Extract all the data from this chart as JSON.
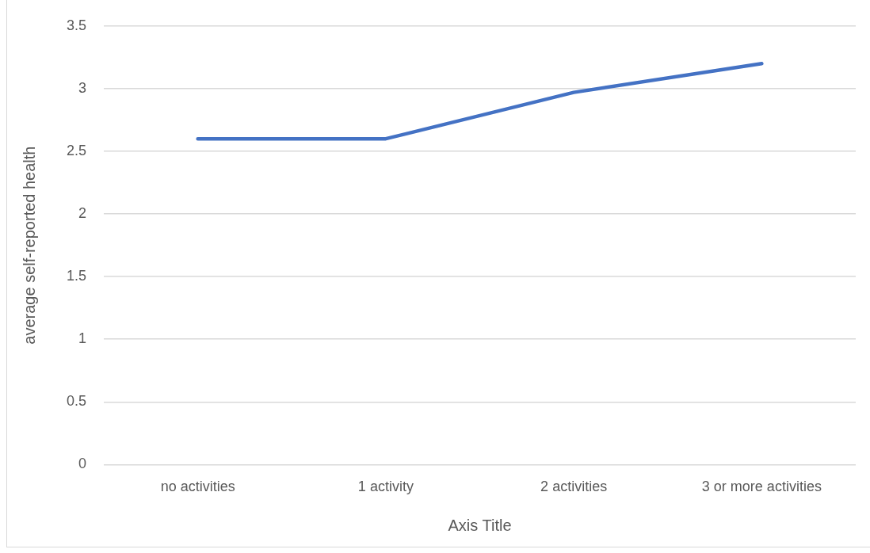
{
  "chart_data": {
    "type": "line",
    "xlabel": "Axis Title",
    "ylabel": "average self-reported health",
    "categories": [
      "no activities",
      "1 activity",
      "2 activities",
      "3 or more activities"
    ],
    "series": [
      {
        "color": "#4472c4",
        "values": [
          2.6,
          2.6,
          2.97,
          3.2
        ]
      }
    ],
    "ylim": [
      0,
      3.5
    ],
    "yticks": [
      0,
      0.5,
      1,
      1.5,
      2,
      2.5,
      3,
      3.5
    ],
    "grid": "y",
    "marker": "none",
    "legend": false
  }
}
